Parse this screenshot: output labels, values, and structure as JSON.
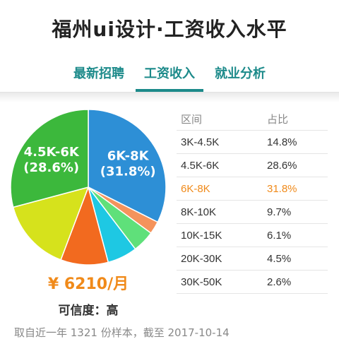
{
  "title": "福州ui设计·工资收入水平",
  "tabs": [
    {
      "label": "最新招聘",
      "active": false
    },
    {
      "label": "工资收入",
      "active": true
    },
    {
      "label": "就业分析",
      "active": false
    }
  ],
  "chart_data": {
    "type": "pie",
    "slices": [
      {
        "label": "3K-4.5K",
        "value": 14.8,
        "color": "#d6e21c"
      },
      {
        "label": "4.5K-6K",
        "value": 28.6,
        "color": "#3cb83c",
        "data_label": "4.5K-6K\n(28.6%)"
      },
      {
        "label": "6K-8K",
        "value": 31.8,
        "color": "#2d8fd6",
        "data_label": "6K-8K\n(31.8%)"
      },
      {
        "label": "8K-10K",
        "value": 9.7,
        "color": "#f26a1f"
      },
      {
        "label": "10K-15K",
        "value": 6.1,
        "color": "#1ec8e3"
      },
      {
        "label": "20K-30K",
        "value": 4.5,
        "color": "#5fe07a"
      },
      {
        "label": "30K-50K",
        "value": 2.6,
        "color": "#f4935c"
      }
    ]
  },
  "salary": "¥ 6210/月",
  "confidence": "可信度：高",
  "table": {
    "headers": [
      "区间",
      "占比"
    ],
    "rows": [
      {
        "range": "3K-4.5K",
        "share": "14.8%",
        "highlight": false
      },
      {
        "range": "4.5K-6K",
        "share": "28.6%",
        "highlight": false
      },
      {
        "range": "6K-8K",
        "share": "31.8%",
        "highlight": true
      },
      {
        "range": "8K-10K",
        "share": "9.7%",
        "highlight": false
      },
      {
        "range": "10K-15K",
        "share": "6.1%",
        "highlight": false
      },
      {
        "range": "20K-30K",
        "share": "4.5%",
        "highlight": false
      },
      {
        "range": "30K-50K",
        "share": "2.6%",
        "highlight": false
      }
    ]
  },
  "footnote": "取自近一年 1321 份样本，截至 2017-10-14",
  "colors": {
    "accent": "#1c8a8a",
    "highlight": "#f08a1a"
  }
}
